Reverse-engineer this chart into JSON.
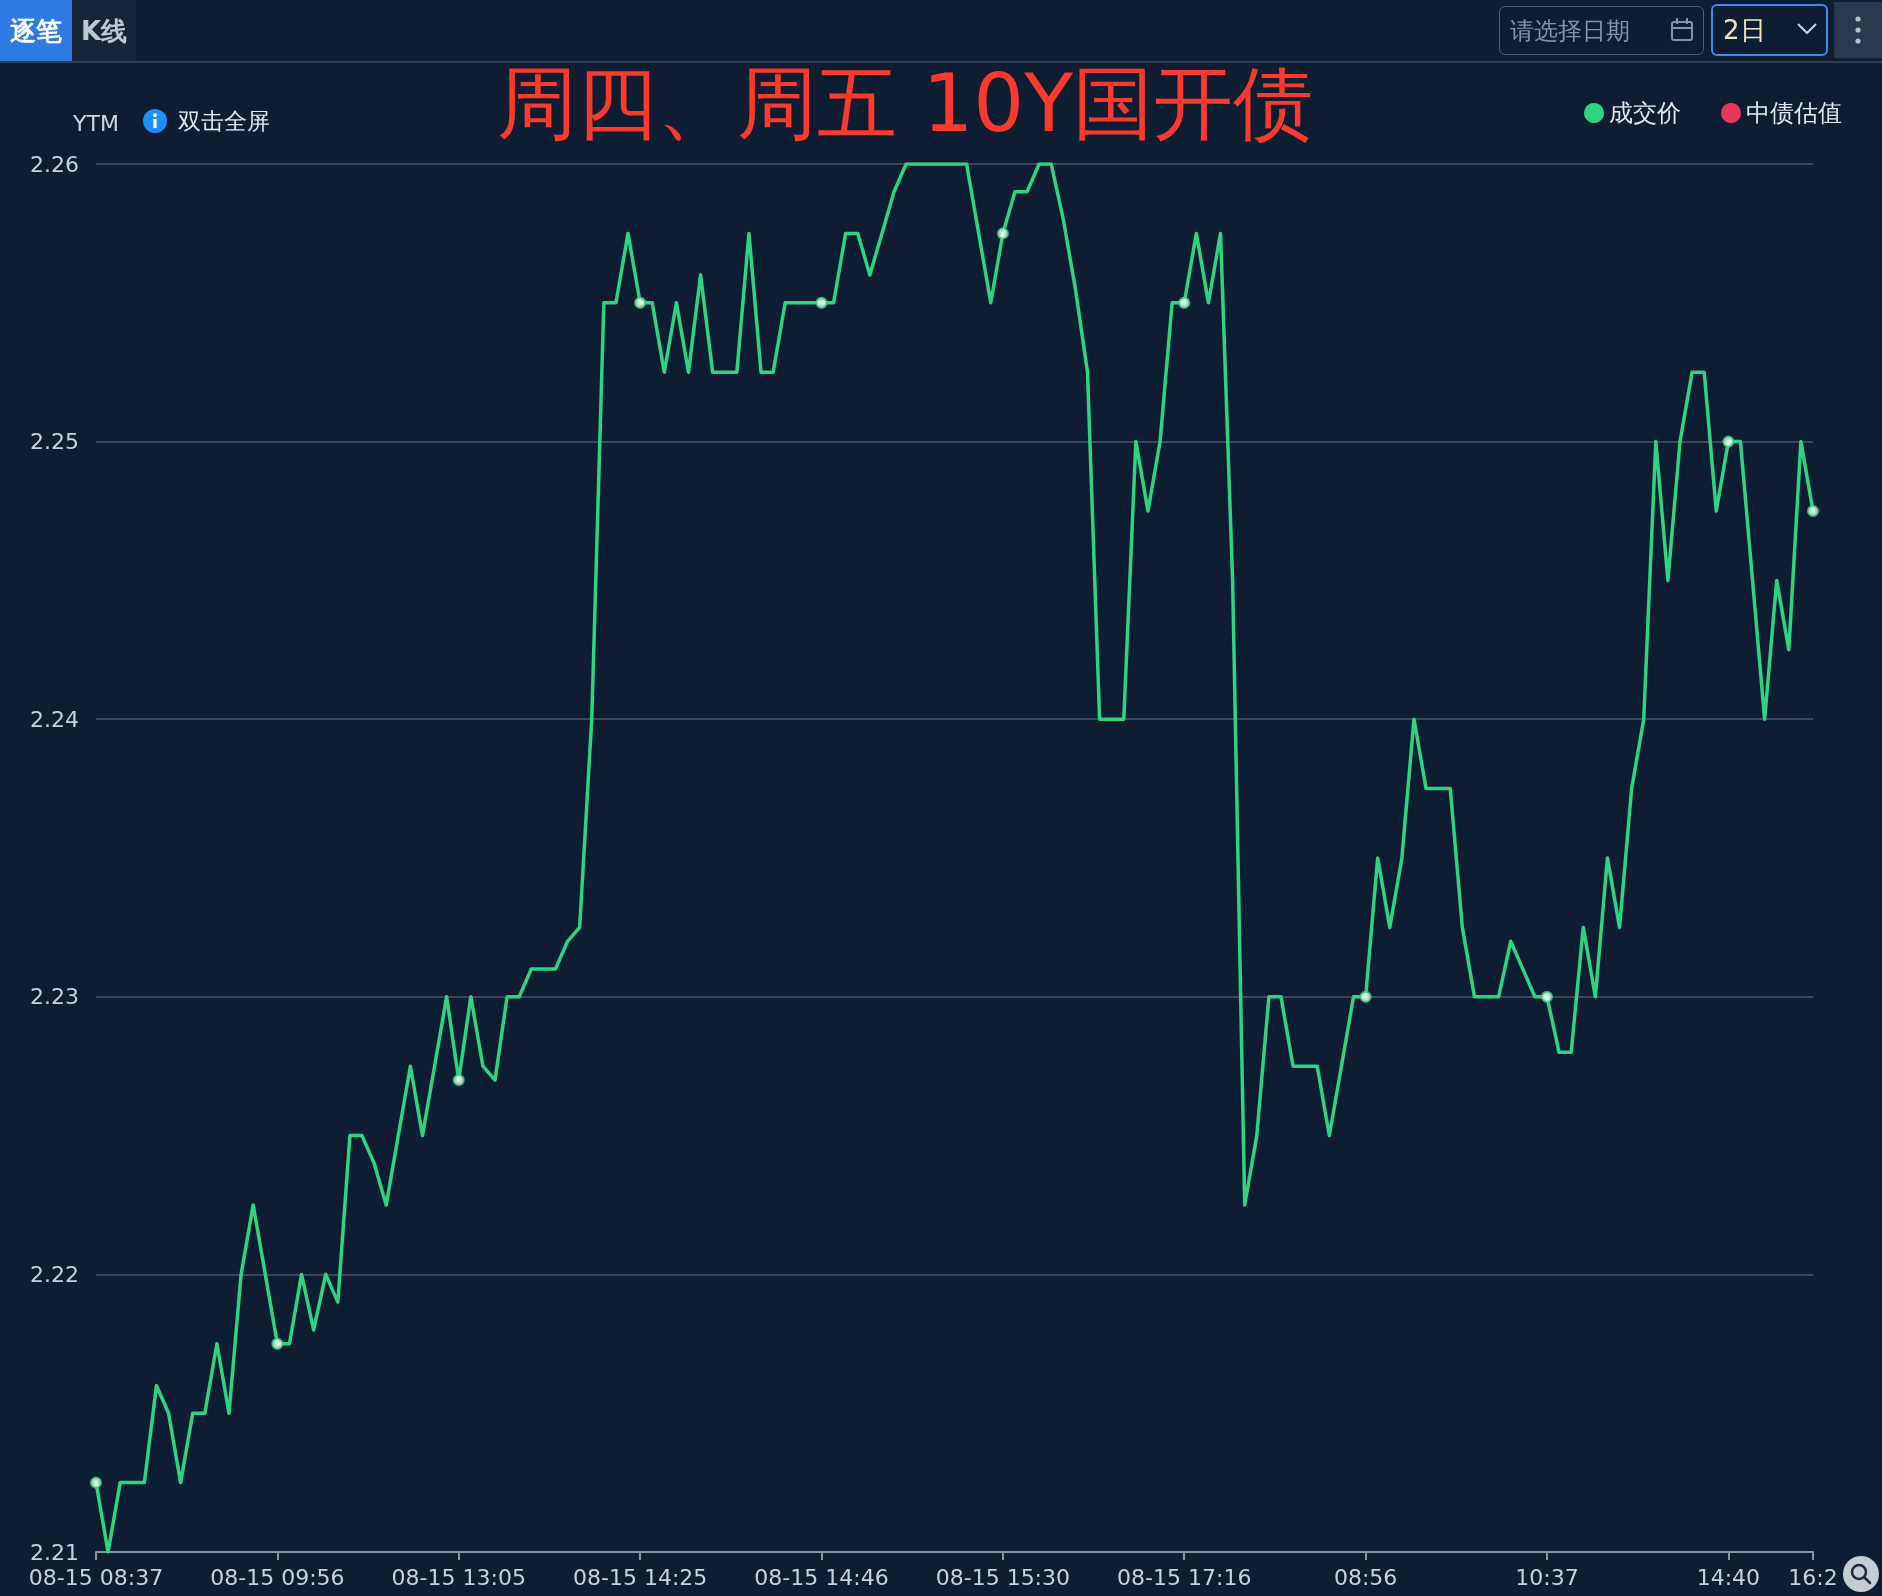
{
  "chart_data": {
    "type": "line",
    "title": "周四、周五 10Y国开债",
    "ylabel": "YTM",
    "annotations": [
      "逐笔",
      "K线",
      "请选择日期",
      "2日",
      "双击全屏"
    ],
    "categories": [
      "08-15 08:37",
      null,
      null,
      null,
      null,
      null,
      null,
      null,
      null,
      null,
      null,
      null,
      null,
      null,
      null,
      "08-15 09:56",
      null,
      null,
      null,
      null,
      null,
      null,
      null,
      null,
      null,
      null,
      null,
      null,
      null,
      null,
      "08-15 13:05",
      null,
      null,
      null,
      null,
      null,
      null,
      null,
      null,
      null,
      null,
      null,
      null,
      null,
      null,
      "08-15 14:25",
      null,
      null,
      null,
      null,
      null,
      null,
      null,
      null,
      null,
      null,
      null,
      null,
      null,
      null,
      "08-15 14:46",
      null,
      null,
      null,
      null,
      null,
      null,
      null,
      null,
      null,
      null,
      null,
      null,
      null,
      null,
      "08-15 15:30",
      null,
      null,
      null,
      null,
      null,
      null,
      null,
      null,
      null,
      null,
      null,
      null,
      null,
      null,
      "08-15 17:16",
      null,
      null,
      null,
      null,
      null,
      null,
      null,
      null,
      null,
      null,
      null,
      null,
      null,
      null,
      "08:56",
      null,
      null,
      null,
      null,
      null,
      null,
      null,
      null,
      null,
      null,
      null,
      null,
      null,
      null,
      "10:37",
      null,
      null,
      null,
      null,
      null,
      null,
      null,
      null,
      null,
      null,
      null,
      null,
      null,
      null,
      "14:40",
      null,
      null,
      null,
      null,
      null,
      null,
      "16:2"
    ],
    "series": [
      {
        "name": "成交价",
        "color": "#2ed47f",
        "marker": "none",
        "values": [
          2.2125,
          2.21,
          2.2125,
          2.2125,
          2.2125,
          2.216,
          2.215,
          2.2125,
          2.215,
          2.215,
          2.2175,
          2.215,
          2.22,
          2.2225,
          2.22,
          2.2175,
          2.2175,
          2.22,
          2.218,
          2.22,
          2.219,
          2.225,
          2.225,
          2.224,
          2.2225,
          2.225,
          2.2275,
          2.225,
          2.2275,
          2.23,
          2.227,
          2.23,
          2.2275,
          2.227,
          2.23,
          2.23,
          2.231,
          2.231,
          2.231,
          2.232,
          2.2325,
          2.24,
          2.255,
          2.255,
          2.2575,
          2.255,
          2.255,
          2.2525,
          2.255,
          2.2525,
          2.256,
          2.2525,
          2.2525,
          2.2525,
          2.2575,
          2.2525,
          2.2525,
          2.255,
          2.255,
          2.255,
          2.255,
          2.255,
          2.2575,
          2.2575,
          2.256,
          2.2575,
          2.259,
          2.26,
          2.26,
          2.26,
          2.26,
          2.26,
          2.26,
          2.2575,
          2.255,
          2.2575,
          2.259,
          2.259,
          2.26,
          2.26,
          2.258,
          2.2555,
          2.2525,
          2.24,
          2.24,
          2.24,
          2.25,
          2.2475,
          2.25,
          2.255,
          2.255,
          2.2575,
          2.255,
          2.2575,
          2.245,
          2.2225,
          2.225,
          2.23,
          2.23,
          2.2275,
          2.2275,
          2.2275,
          2.225,
          2.2275,
          2.23,
          2.23,
          2.235,
          2.2325,
          2.235,
          2.24,
          2.2375,
          2.2375,
          2.2375,
          2.2325,
          2.23,
          2.23,
          2.23,
          2.232,
          2.231,
          2.23,
          2.23,
          2.228,
          2.228,
          2.2325,
          2.23,
          2.235,
          2.2325,
          2.2375,
          2.24,
          2.25,
          2.245,
          2.25,
          2.2525,
          2.2525,
          2.2475,
          2.25,
          2.25,
          2.245,
          2.24,
          2.245,
          2.2425,
          2.25,
          2.2475
        ]
      },
      {
        "type": "scatter",
        "color": "#2ed47f",
        "values": [
          2.2125,
          null,
          null,
          null,
          null,
          null,
          null,
          null,
          null,
          null,
          null,
          null,
          null,
          null,
          null,
          2.2175,
          null,
          null,
          null,
          null,
          null,
          null,
          null,
          null,
          null,
          null,
          null,
          null,
          null,
          null,
          2.227,
          null,
          null,
          null,
          null,
          null,
          null,
          null,
          null,
          null,
          null,
          null,
          null,
          null,
          null,
          2.255,
          null,
          null,
          null,
          null,
          null,
          null,
          null,
          null,
          null,
          null,
          null,
          null,
          null,
          null,
          2.255,
          null,
          null,
          null,
          null,
          null,
          null,
          null,
          null,
          null,
          null,
          null,
          null,
          null,
          null,
          2.2575,
          null,
          null,
          null,
          null,
          null,
          null,
          null,
          null,
          null,
          null,
          null,
          null,
          null,
          null,
          2.255,
          null,
          null,
          null,
          null,
          null,
          null,
          null,
          null,
          null,
          null,
          null,
          null,
          null,
          null,
          2.23,
          null,
          null,
          null,
          null,
          null,
          null,
          null,
          null,
          null,
          null,
          null,
          null,
          null,
          null,
          2.23,
          null,
          null,
          null,
          null,
          null,
          null,
          null,
          null,
          null,
          null,
          null,
          null,
          null,
          null,
          2.25,
          null,
          null,
          null,
          null,
          null,
          null,
          2.2475
        ]
      },
      {
        "name": "中债估值",
        "color": "#e8365d",
        "values": [
          null,
          null,
          null,
          null,
          null,
          null,
          null,
          null,
          null,
          null,
          null,
          null,
          null,
          null,
          null,
          null,
          null,
          null,
          null,
          null,
          null,
          null,
          null,
          null,
          null,
          null,
          null,
          null,
          null,
          null,
          null,
          null,
          null,
          null,
          null,
          null,
          null,
          null,
          null,
          null,
          null,
          null,
          null,
          null,
          null,
          null,
          null,
          null,
          null,
          null,
          null,
          null,
          null,
          null,
          null,
          null,
          null,
          null,
          null,
          null,
          null,
          null,
          null,
          null,
          null,
          null,
          null,
          null,
          null,
          null,
          null,
          null,
          null,
          null,
          null,
          null,
          null,
          null,
          null,
          null,
          null,
          null,
          null,
          null,
          null,
          null,
          null,
          null,
          null,
          null,
          null,
          null,
          null,
          null,
          null,
          null,
          null,
          null,
          null,
          null,
          null,
          null,
          null,
          null,
          null,
          null,
          null,
          null,
          null,
          null,
          null,
          null,
          null,
          null,
          null,
          null,
          null,
          null,
          null,
          null,
          null,
          null,
          null,
          null,
          null,
          null,
          null,
          null,
          null,
          null,
          null,
          null,
          null,
          null,
          null,
          null,
          null,
          null,
          null,
          null,
          null,
          null,
          null
        ]
      }
    ],
    "ylim": [
      2.21,
      2.26
    ],
    "yticks": [
      2.21,
      2.22,
      2.23,
      2.24,
      2.25,
      2.26
    ],
    "grid": "y",
    "legend": "top right",
    "marker": "circle",
    "line_style": "solid"
  }
}
